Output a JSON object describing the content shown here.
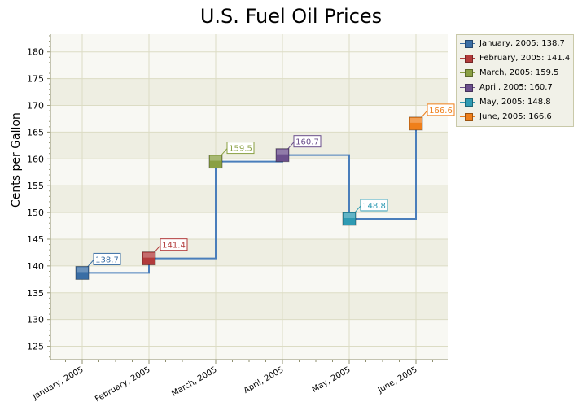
{
  "chart_data": {
    "type": "line",
    "step": true,
    "title": "U.S. Fuel Oil Prices",
    "ylabel": "Cents per Gallon",
    "xlabel": "",
    "categories": [
      "January, 2005",
      "February, 2005",
      "March, 2005",
      "April, 2005",
      "May, 2005",
      "June, 2005"
    ],
    "values": [
      138.7,
      141.4,
      159.5,
      160.7,
      148.8,
      166.6
    ],
    "data_labels": [
      "138.7",
      "141.4",
      "159.5",
      "160.7",
      "148.8",
      "166.6"
    ],
    "point_colors": [
      "#3a6ea5",
      "#b23b3b",
      "#8aa043",
      "#6b4f8c",
      "#2f9bb3",
      "#ef7f1a"
    ],
    "line_color": "#4a7ebb",
    "ylim": [
      122.5,
      183.3
    ],
    "yticks": [
      125,
      130,
      135,
      140,
      145,
      150,
      155,
      160,
      165,
      170,
      175,
      180
    ],
    "ytick_labels": [
      "125",
      "130",
      "135",
      "140",
      "145",
      "150",
      "155",
      "160",
      "165",
      "170",
      "175",
      "180"
    ],
    "grid": true,
    "legend_position": "right",
    "legend": [
      "January, 2005: 138.7",
      "February, 2005: 141.4",
      "March, 2005: 159.5",
      "April, 2005: 160.7",
      "May, 2005: 148.8",
      "June, 2005: 166.6"
    ]
  }
}
